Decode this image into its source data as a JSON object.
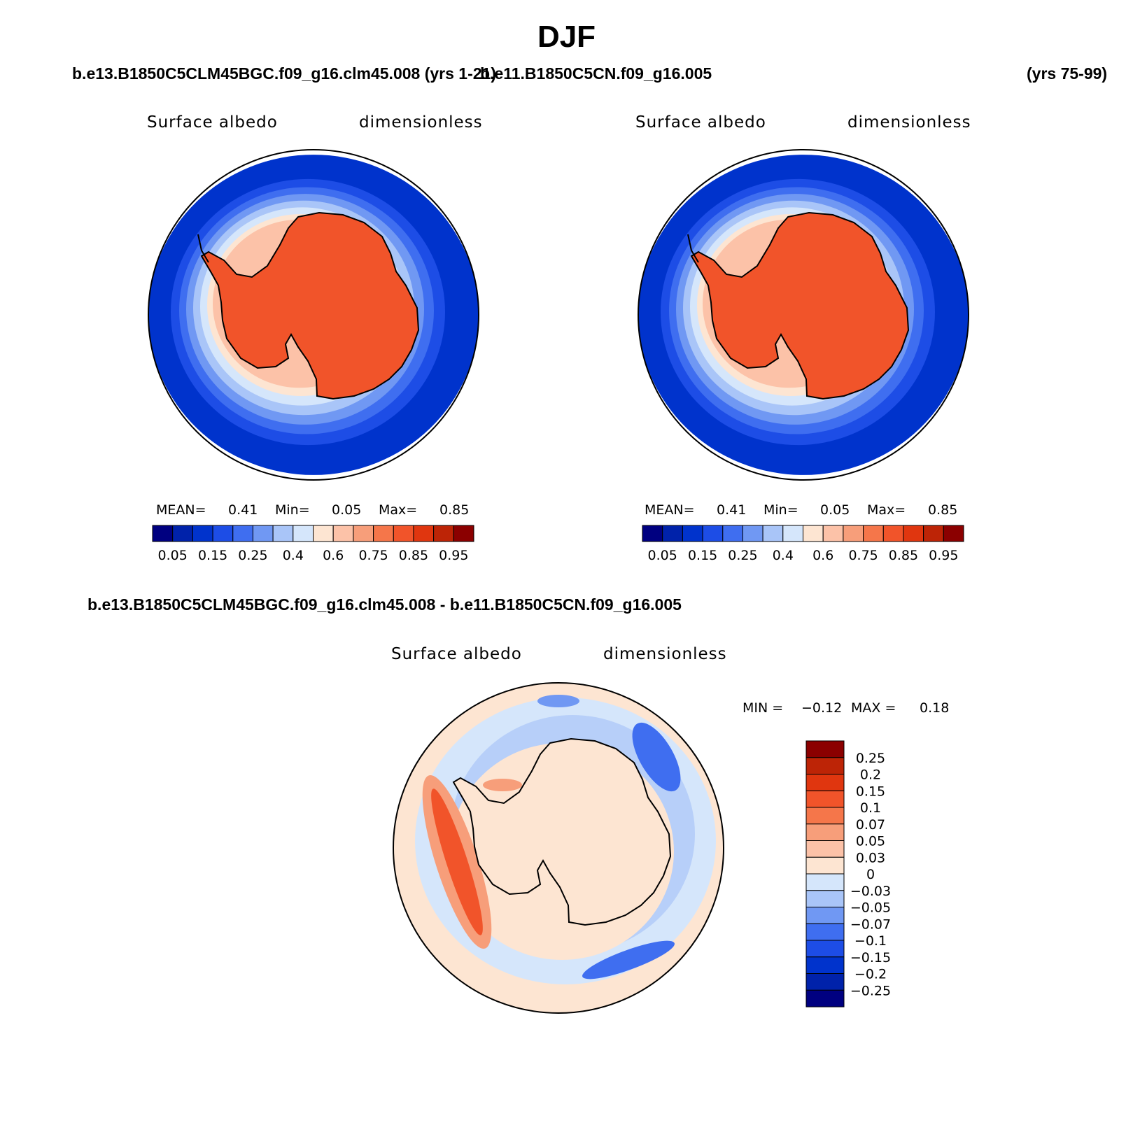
{
  "figure": {
    "title": "DJF",
    "header_left": "b.e13.B1850C5CLM45BGC.f09_g16.clm45.008 (yrs 1-21)",
    "header_mid": "b.e11.B1850C5CN.f09_g16.005",
    "header_right": "(yrs 75-99)",
    "diff_title": "b.e13.B1850C5CLM45BGC.f09_g16.clm45.008 - b.e11.B1850C5CN.f09_g16.005"
  },
  "chart_data": [
    {
      "type": "heatmap",
      "projection": "south-polar-stereographic",
      "title": "Surface albedo",
      "units": "dimensionless",
      "stats": {
        "mean_label": "MEAN=",
        "mean": "0.41",
        "min_label": "Min=",
        "min": "0.05",
        "max_label": "Max=",
        "max": "0.85"
      },
      "colorbar": {
        "orientation": "horizontal",
        "levels": [
          0.05,
          0.1,
          0.15,
          0.2,
          0.25,
          0.3,
          0.4,
          0.5,
          0.6,
          0.65,
          0.7,
          0.75,
          0.8,
          0.85,
          0.9,
          0.95
        ],
        "tick_labels": [
          "0.05",
          "0.15",
          "0.25",
          "0.4",
          "0.6",
          "0.75",
          "0.85",
          "0.95"
        ],
        "colors": [
          "#000080",
          "#0022aa",
          "#0033cc",
          "#1d4de6",
          "#3f6ef0",
          "#7098f3",
          "#a9c5f8",
          "#d5e6fb",
          "#fde5d2",
          "#fcc2a8",
          "#f79e7a",
          "#f5764a",
          "#f1542a",
          "#e0360f",
          "#bd2406",
          "#8b0000"
        ]
      }
    },
    {
      "type": "heatmap",
      "projection": "south-polar-stereographic",
      "title": "Surface albedo",
      "units": "dimensionless",
      "stats": {
        "mean_label": "MEAN=",
        "mean": "0.41",
        "min_label": "Min=",
        "min": "0.05",
        "max_label": "Max=",
        "max": "0.85"
      },
      "colorbar": {
        "orientation": "horizontal",
        "levels": [
          0.05,
          0.1,
          0.15,
          0.2,
          0.25,
          0.3,
          0.4,
          0.5,
          0.6,
          0.65,
          0.7,
          0.75,
          0.8,
          0.85,
          0.9,
          0.95
        ],
        "tick_labels": [
          "0.05",
          "0.15",
          "0.25",
          "0.4",
          "0.6",
          "0.75",
          "0.85",
          "0.95"
        ],
        "colors": [
          "#000080",
          "#0022aa",
          "#0033cc",
          "#1d4de6",
          "#3f6ef0",
          "#7098f3",
          "#a9c5f8",
          "#d5e6fb",
          "#fde5d2",
          "#fcc2a8",
          "#f79e7a",
          "#f5764a",
          "#f1542a",
          "#e0360f",
          "#bd2406",
          "#8b0000"
        ]
      }
    },
    {
      "type": "heatmap",
      "projection": "south-polar-stereographic",
      "title": "Surface albedo",
      "units": "dimensionless",
      "stats": {
        "min_label": "MIN =",
        "min": "−0.12",
        "max_label": "MAX =",
        "max": "0.18"
      },
      "colorbar": {
        "orientation": "vertical",
        "tick_labels": [
          "0.25",
          "0.2",
          "0.15",
          "0.1",
          "0.07",
          "0.05",
          "0.03",
          "0",
          "−0.03",
          "−0.05",
          "−0.07",
          "−0.1",
          "−0.15",
          "−0.2",
          "−0.25"
        ],
        "colors": [
          "#8b0000",
          "#bd2406",
          "#e0360f",
          "#f1542a",
          "#f5764a",
          "#f79e7a",
          "#fcc2a8",
          "#fde5d2",
          "#d5e6fb",
          "#a9c5f8",
          "#7098f3",
          "#3f6ef0",
          "#1d4de6",
          "#0033cc",
          "#0022aa",
          "#000080"
        ]
      }
    }
  ]
}
